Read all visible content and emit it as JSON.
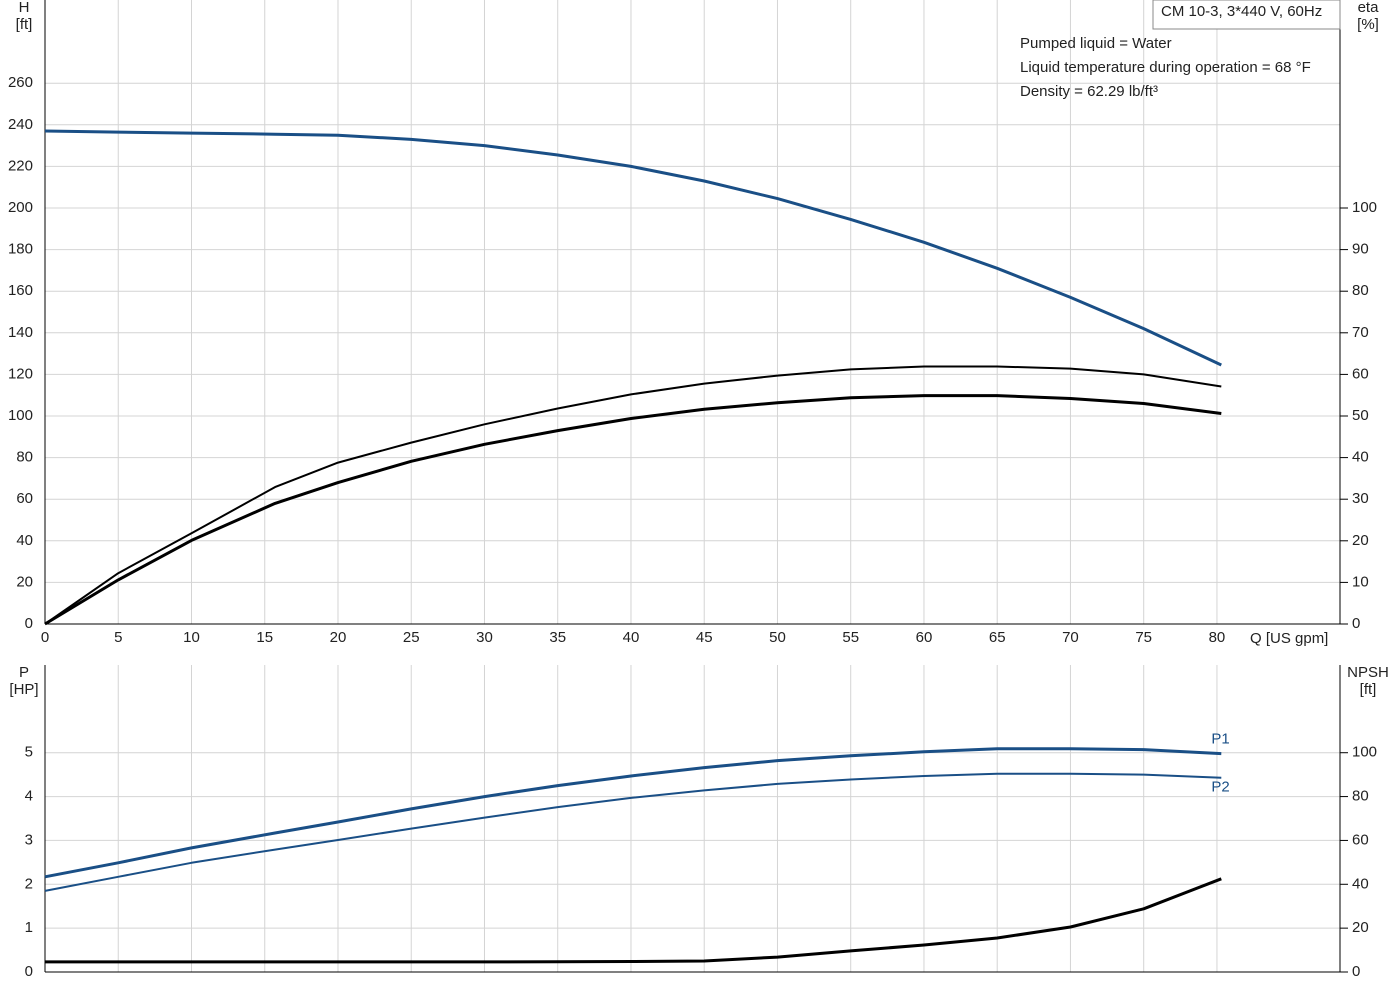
{
  "chart_data": [
    {
      "type": "line",
      "title": "CM 10-3, 3*440 V, 60Hz",
      "annotations": [
        "Pumped liquid = Water",
        "Liquid temperature during operation = 68 °F",
        "Density = 62.29 lb/ft³"
      ],
      "ylabel": [
        "H",
        "[ft]"
      ],
      "y2label": [
        "eta",
        "[%]"
      ],
      "xlabel": "Q [US gpm]",
      "grid": true,
      "x": [
        0,
        5,
        10,
        15.7,
        20,
        25,
        30,
        35,
        40,
        45,
        50,
        55,
        60,
        65,
        70,
        75,
        80.3
      ],
      "xlim": [
        0,
        88.4
      ],
      "xticks": [
        0,
        5,
        10,
        15,
        20,
        25,
        30,
        35,
        40,
        45,
        50,
        55,
        60,
        65,
        70,
        75,
        80
      ],
      "ylim": [
        0,
        300
      ],
      "yticks": [
        0,
        20,
        40,
        60,
        80,
        100,
        120,
        140,
        160,
        180,
        200,
        220,
        240,
        260
      ],
      "y2lim": [
        0,
        150
      ],
      "y2ticks": [
        0,
        10,
        20,
        30,
        40,
        50,
        60,
        70,
        80,
        90,
        100
      ],
      "series": [
        {
          "color": "#1a4f86",
          "values": [
            237,
            236.5,
            236,
            235.5,
            235,
            233,
            230,
            225.5,
            220,
            213,
            204.5,
            194.5,
            183.5,
            171,
            157,
            142,
            124.5
          ]
        },
        {
          "color": "#000000",
          "axis": "y2",
          "values": [
            0,
            12.2,
            21.8,
            32.9,
            38.8,
            43.6,
            48,
            51.8,
            55.2,
            57.8,
            59.7,
            61.2,
            61.9,
            61.9,
            61.4,
            60,
            57.1
          ]
        },
        {
          "color": "#000000",
          "axis": "y2",
          "values": [
            0,
            10.6,
            20.1,
            29,
            34,
            39.1,
            43.2,
            46.5,
            49.4,
            51.6,
            53.2,
            54.4,
            54.9,
            54.9,
            54.2,
            53,
            50.6
          ]
        }
      ]
    },
    {
      "type": "line",
      "ylabel": [
        "P",
        "[HP]"
      ],
      "y2label": [
        "NPSH",
        "[ft]"
      ],
      "grid": true,
      "x": [
        0,
        5,
        10,
        15.7,
        20,
        25,
        30,
        35,
        40,
        45,
        50,
        55,
        60,
        65,
        70,
        75,
        80.3
      ],
      "xlim": [
        0,
        88.4
      ],
      "xticks": [
        0,
        5,
        10,
        15,
        20,
        25,
        30,
        35,
        40,
        45,
        50,
        55,
        60,
        65,
        70,
        75,
        80
      ],
      "ylim": [
        0,
        7
      ],
      "yticks": [
        0,
        1,
        2,
        3,
        4,
        5
      ],
      "y2lim": [
        0,
        140
      ],
      "y2ticks": [
        0,
        20,
        40,
        60,
        80,
        100
      ],
      "series": [
        {
          "name": "P1",
          "color": "#1a4f86",
          "values": [
            2.17,
            2.49,
            2.83,
            3.17,
            3.42,
            3.72,
            4.0,
            4.25,
            4.47,
            4.66,
            4.82,
            4.93,
            5.02,
            5.09,
            5.09,
            5.07,
            4.98
          ]
        },
        {
          "name": "P2",
          "color": "#1a4f86",
          "values": [
            1.85,
            2.17,
            2.49,
            2.79,
            3.01,
            3.27,
            3.52,
            3.76,
            3.97,
            4.14,
            4.29,
            4.39,
            4.47,
            4.52,
            4.52,
            4.5,
            4.43
          ]
        },
        {
          "color": "#000000",
          "axis": "y2",
          "values": [
            4.6,
            4.6,
            4.6,
            4.6,
            4.6,
            4.6,
            4.6,
            4.7,
            4.8,
            5,
            6.8,
            9.6,
            12.3,
            15.5,
            20.5,
            28.8,
            42.5
          ]
        }
      ]
    }
  ]
}
